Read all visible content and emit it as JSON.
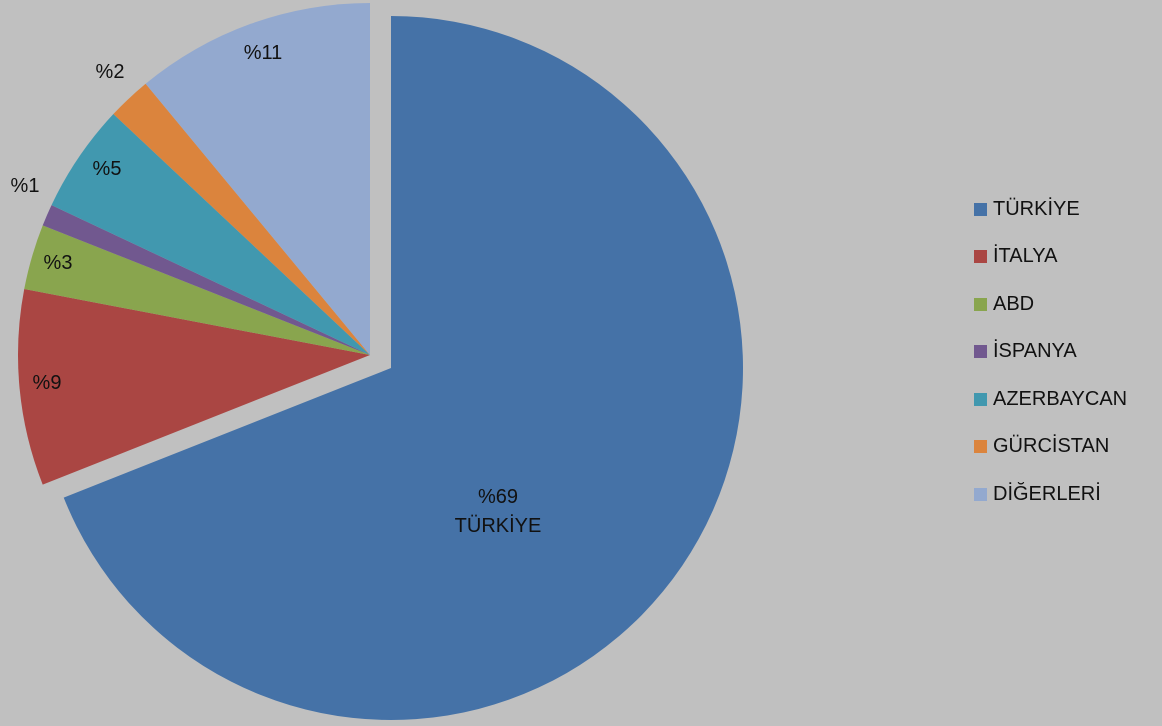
{
  "chart_data": {
    "type": "pie",
    "series": [
      {
        "name": "TÜRKİYE",
        "value": 69,
        "label": "%69",
        "sublabel": "TÜRKİYE",
        "color": "#4572a7"
      },
      {
        "name": "İTALYA",
        "value": 9,
        "label": "%9",
        "color": "#aa4643"
      },
      {
        "name": "ABD",
        "value": 3,
        "label": "%3",
        "color": "#89a54e"
      },
      {
        "name": "İSPANYA",
        "value": 1,
        "label": "%1",
        "color": "#71588f"
      },
      {
        "name": "AZERBAYCAN",
        "value": 5,
        "label": "%5",
        "color": "#4198af"
      },
      {
        "name": "GÜRCİSTAN",
        "value": 2,
        "label": "%2",
        "color": "#db843d"
      },
      {
        "name": "DİĞERLERİ",
        "value": 11,
        "label": "%11",
        "color": "#93a9cf"
      }
    ],
    "legend_position": "right",
    "exploded_slice": "TÜRKİYE"
  }
}
